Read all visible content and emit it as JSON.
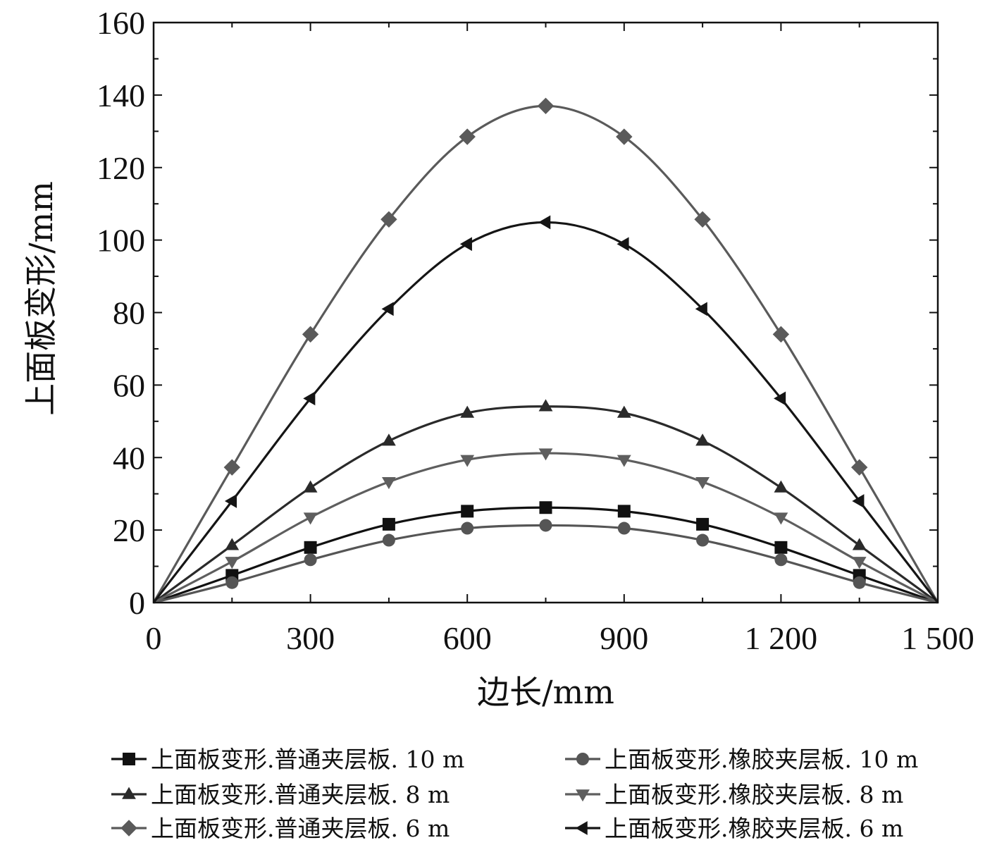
{
  "chart_data": {
    "type": "line",
    "xlabel": "边长/mm",
    "ylabel": "上面板变形/mm",
    "xlim": [
      0,
      1500
    ],
    "ylim": [
      0,
      160
    ],
    "x_ticks": [
      0,
      300,
      600,
      900,
      1200,
      1500
    ],
    "x_tick_labels": [
      "0",
      "300",
      "600",
      "900",
      "1 200",
      "1 500"
    ],
    "y_ticks": [
      0,
      20,
      40,
      60,
      80,
      100,
      120,
      140,
      160
    ],
    "y_tick_labels": [
      "0",
      "20",
      "40",
      "60",
      "80",
      "100",
      "120",
      "140",
      "160"
    ],
    "grid": false,
    "legend_position": "bottom",
    "x": [
      0,
      150,
      300,
      450,
      600,
      750,
      900,
      1050,
      1200,
      1350,
      1500
    ],
    "series": [
      {
        "name": "上面板变形.普通夹层板. 10 m",
        "marker": "square",
        "color": "#111111",
        "values": [
          0,
          7.5,
          15.2,
          21.6,
          25.2,
          26.2,
          25.2,
          21.6,
          15.2,
          7.5,
          0
        ]
      },
      {
        "name": "上面板变形.橡胶夹层板. 10 m",
        "marker": "circle",
        "color": "#555555",
        "values": [
          0,
          5.5,
          11.8,
          17.2,
          20.5,
          21.3,
          20.5,
          17.2,
          11.8,
          5.5,
          0
        ]
      },
      {
        "name": "上面板变形.普通夹层板. 8 m",
        "marker": "triangle-up",
        "color": "#2a2a2a",
        "values": [
          0,
          15.8,
          31.7,
          44.6,
          52.3,
          54.1,
          52.3,
          44.6,
          31.7,
          15.8,
          0
        ]
      },
      {
        "name": "上面板变形.橡胶夹层板. 8 m",
        "marker": "triangle-down",
        "color": "#5e5e5e",
        "values": [
          0,
          11.3,
          23.5,
          33.3,
          39.4,
          41.2,
          39.4,
          33.3,
          23.5,
          11.3,
          0
        ]
      },
      {
        "name": "上面板变形.普通夹层板. 6 m",
        "marker": "diamond",
        "color": "#5a5a5a",
        "values": [
          0,
          37.3,
          74.0,
          105.7,
          128.5,
          137.0,
          128.5,
          105.7,
          74.0,
          37.3,
          0
        ]
      },
      {
        "name": "上面板变形.橡胶夹层板. 6 m",
        "marker": "triangle-left",
        "color": "#151515",
        "values": [
          0,
          28.0,
          56.3,
          81.0,
          98.9,
          104.9,
          98.9,
          81.0,
          56.3,
          28.0,
          0
        ]
      }
    ]
  }
}
